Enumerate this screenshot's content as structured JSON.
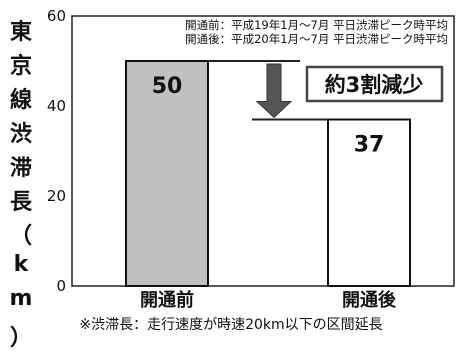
{
  "chart_data": {
    "type": "bar",
    "title": "",
    "ylabel": "東京線渋滞長（km）",
    "xlabel": "",
    "categories": [
      "開通前",
      "開通後"
    ],
    "values": [
      50,
      37
    ],
    "ylim": [
      0,
      60
    ],
    "yticks": [
      0,
      20,
      40,
      60
    ],
    "grid": false,
    "legend": [
      "開通前：平成19年1月～7月 平日渋滞ピーク時平均",
      "開通後：平成20年1月～7月 平日渋滞ピーク時平均"
    ],
    "annotation": "約3割減少",
    "footnote": "※渋滞長：走行速度が時速20km以下の区間延長",
    "colors": {
      "bar_before": "#c0c0c0",
      "bar_after": "#ffffff",
      "arrow": "#555555",
      "annotation_border": "#444444"
    }
  }
}
